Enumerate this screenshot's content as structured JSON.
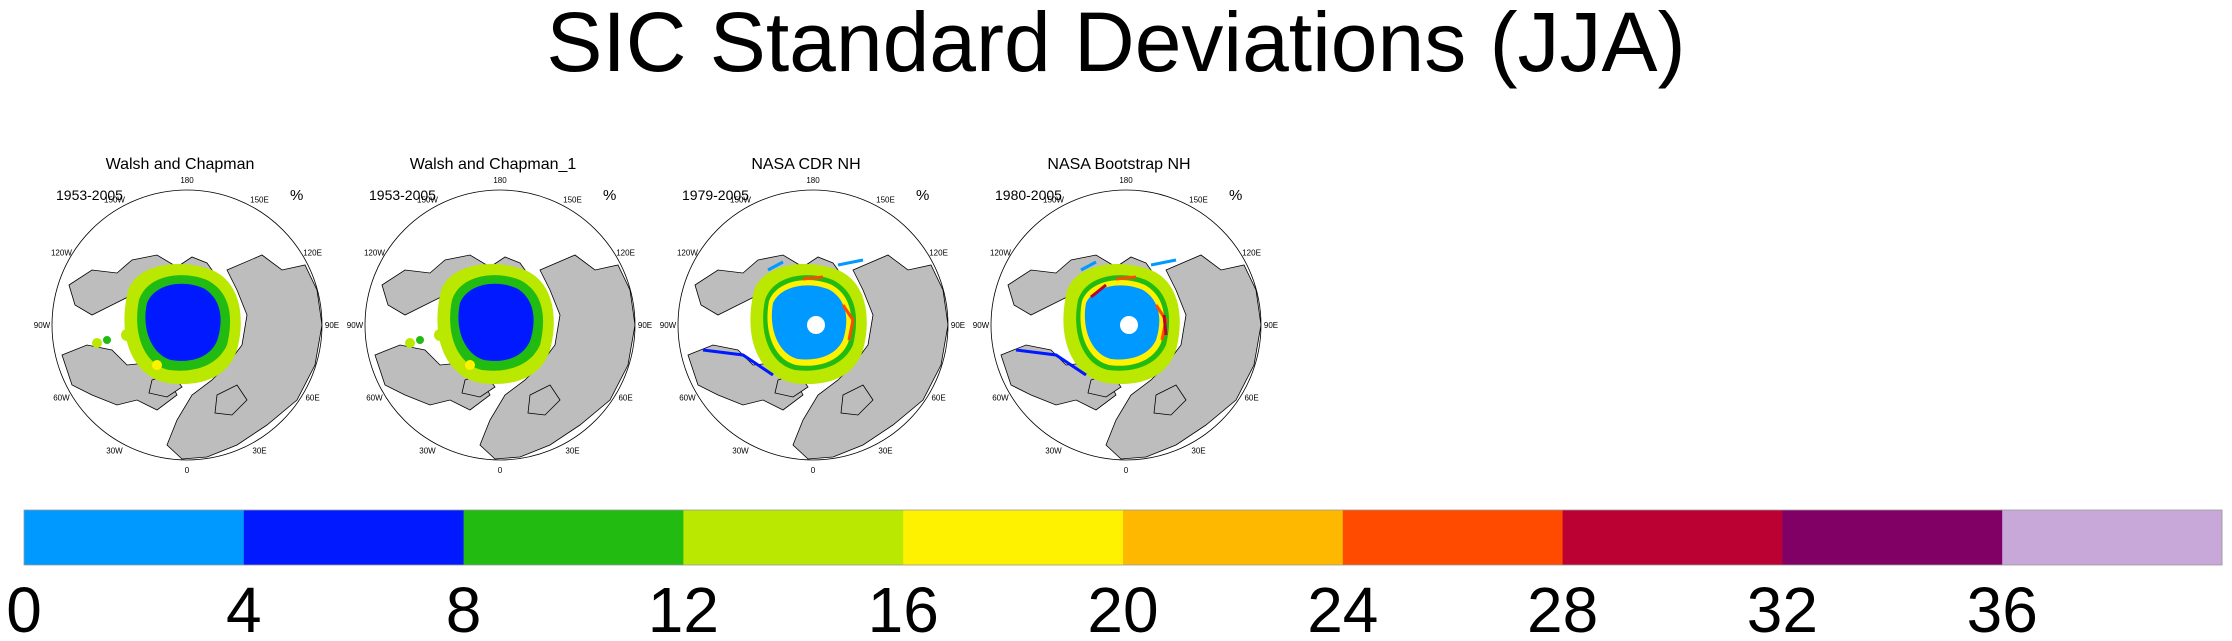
{
  "title": "SIC Standard Deviations (JJA)",
  "panels": [
    {
      "title": "Walsh and Chapman",
      "years": "1953-2005",
      "unit": "%",
      "style": "wc"
    },
    {
      "title": "Walsh and Chapman_1",
      "years": "1953-2005",
      "unit": "%",
      "style": "wc"
    },
    {
      "title": "NASA CDR NH",
      "years": "1979-2005",
      "unit": "%",
      "style": "cdr"
    },
    {
      "title": "NASA Bootstrap NH",
      "years": "1980-2005",
      "unit": "%",
      "style": "bs"
    }
  ],
  "longitude_labels": [
    "180",
    "150E",
    "120E",
    "90E",
    "60E",
    "30E",
    "0",
    "30W",
    "60W",
    "90W",
    "120W",
    "150W"
  ],
  "colorbar": {
    "ticks": [
      "0",
      "4",
      "8",
      "12",
      "16",
      "20",
      "24",
      "28",
      "32",
      "36"
    ],
    "colors": [
      "#0099ff",
      "#0019ff",
      "#22bb11",
      "#bbe800",
      "#fff200",
      "#ffb800",
      "#ff4b00",
      "#bb0033",
      "#800066",
      "#c8a8d8"
    ]
  },
  "map_colors": {
    "land": "#bdbdbd",
    "ocean": "#ffffff"
  }
}
